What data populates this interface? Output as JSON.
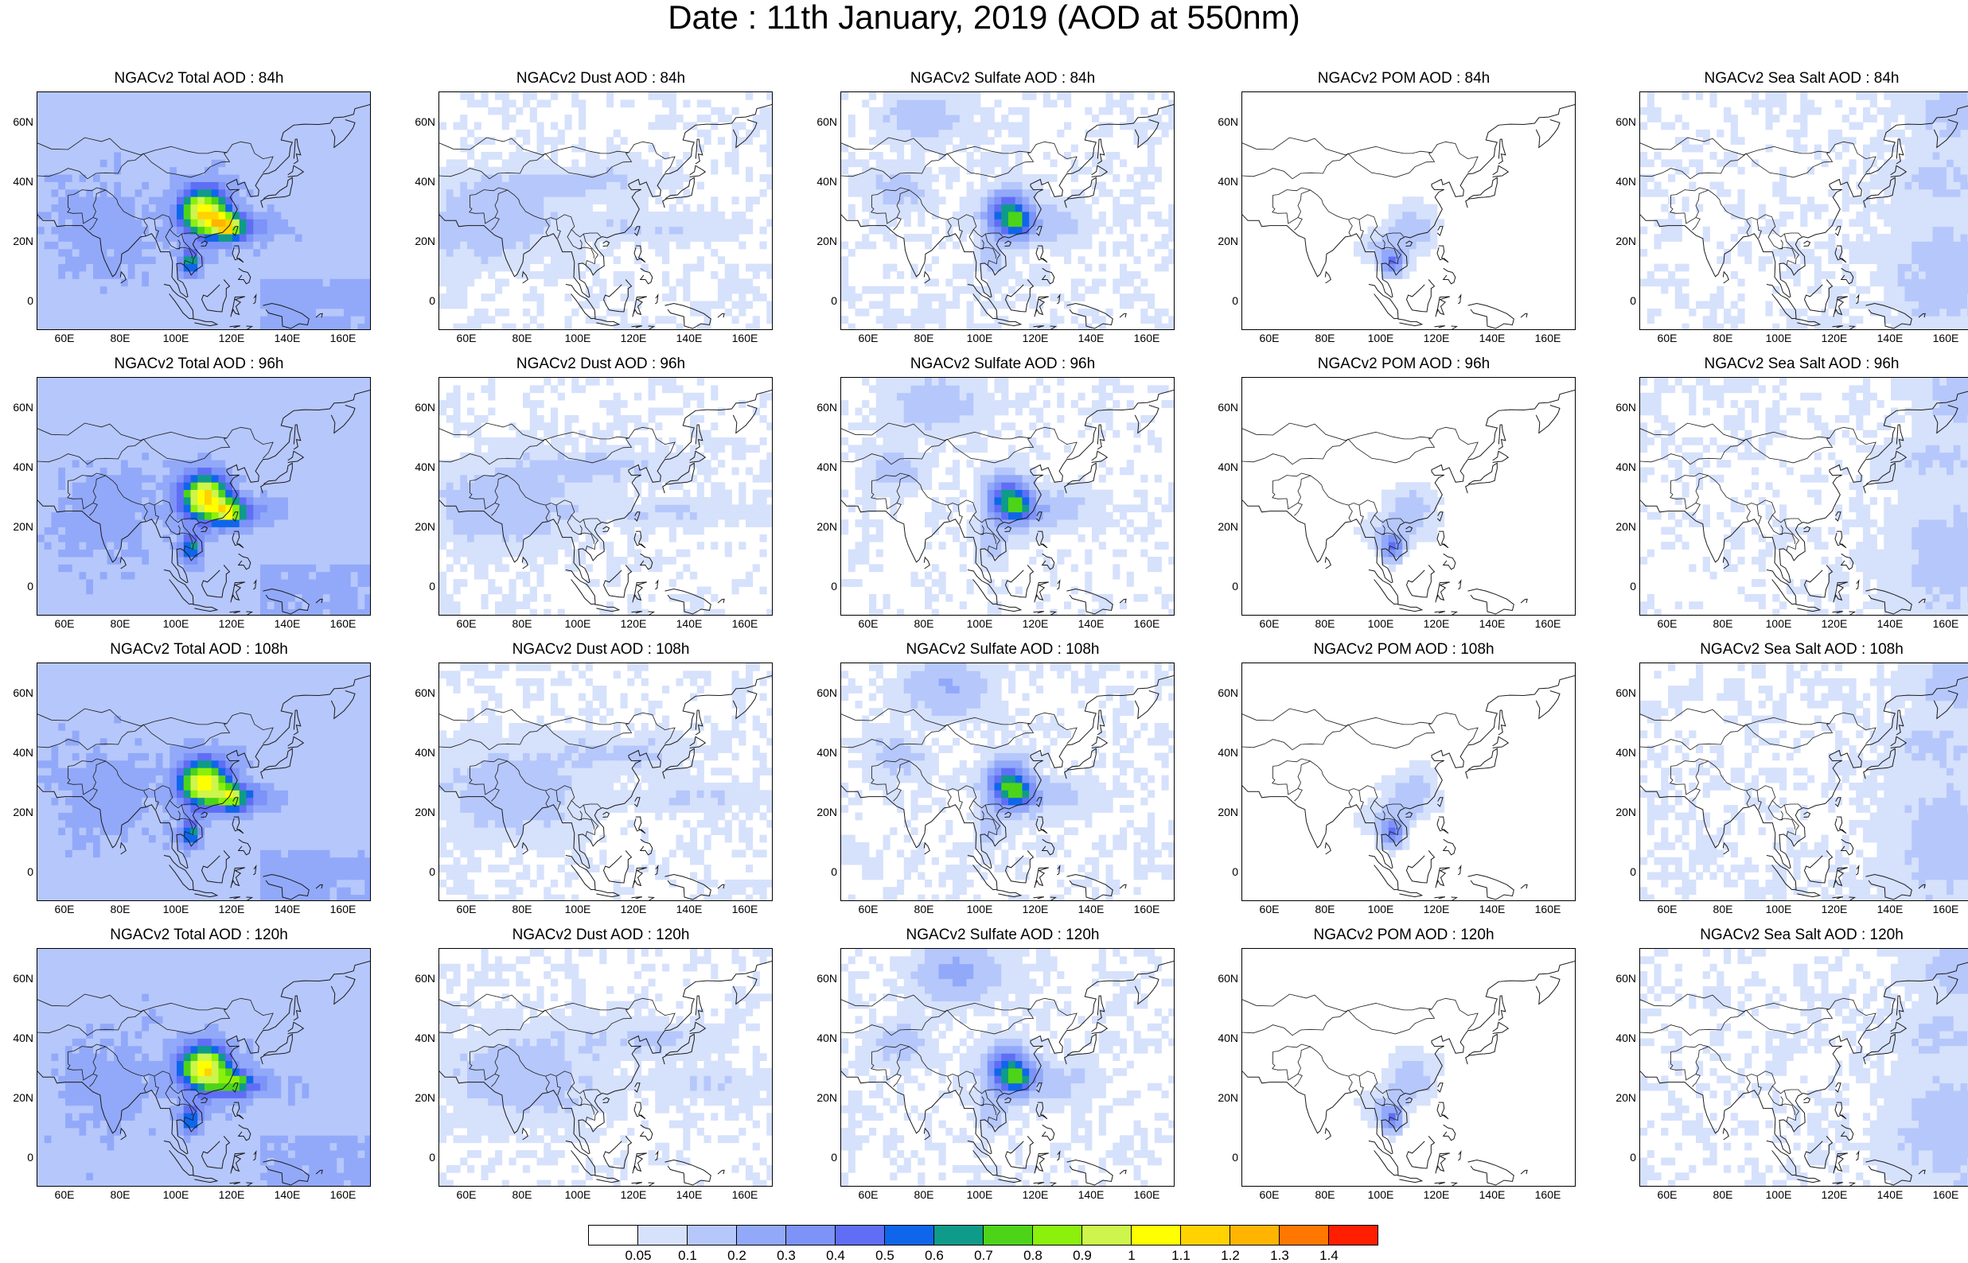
{
  "title": "Date : 11th January, 2019 (AOD at 550nm)",
  "map": {
    "lon_range": [
      50,
      170
    ],
    "lat_range": [
      -10,
      70
    ],
    "lat_ticks": [
      "60N",
      "40N",
      "20N",
      "0"
    ],
    "lon_ticks": [
      "60E",
      "80E",
      "100E",
      "120E",
      "140E",
      "160E"
    ]
  },
  "colorbar": {
    "colors": [
      "#ffffff",
      "#d6e1fc",
      "#b6c7fb",
      "#92a9fa",
      "#7d93f8",
      "#5f6ef5",
      "#0f66ea",
      "#0f9b8a",
      "#4dd419",
      "#8bf00b",
      "#cdf54b",
      "#ffff00",
      "#ffd200",
      "#ffb400",
      "#ff7700",
      "#ff1e00"
    ],
    "labels": [
      "0.05",
      "0.1",
      "0.2",
      "0.3",
      "0.4",
      "0.5",
      "0.6",
      "0.7",
      "0.8",
      "0.9",
      "1",
      "1.1",
      "1.2",
      "1.3",
      "1.4"
    ]
  },
  "panels": [
    {
      "title": "NGACv2 Total AOD : 84h",
      "species": "total",
      "forecast_hour": 84
    },
    {
      "title": "NGACv2 Dust AOD : 84h",
      "species": "dust",
      "forecast_hour": 84
    },
    {
      "title": "NGACv2 Sulfate AOD : 84h",
      "species": "sulfate",
      "forecast_hour": 84
    },
    {
      "title": "NGACv2 POM AOD : 84h",
      "species": "pom",
      "forecast_hour": 84
    },
    {
      "title": "NGACv2 Sea Salt AOD : 84h",
      "species": "seasalt",
      "forecast_hour": 84
    },
    {
      "title": "NGACv2 Total AOD : 96h",
      "species": "total",
      "forecast_hour": 96
    },
    {
      "title": "NGACv2 Dust AOD : 96h",
      "species": "dust",
      "forecast_hour": 96
    },
    {
      "title": "NGACv2 Sulfate AOD : 96h",
      "species": "sulfate",
      "forecast_hour": 96
    },
    {
      "title": "NGACv2 POM AOD : 96h",
      "species": "pom",
      "forecast_hour": 96
    },
    {
      "title": "NGACv2 Sea Salt AOD : 96h",
      "species": "seasalt",
      "forecast_hour": 96
    },
    {
      "title": "NGACv2 Total AOD : 108h",
      "species": "total",
      "forecast_hour": 108
    },
    {
      "title": "NGACv2 Dust AOD : 108h",
      "species": "dust",
      "forecast_hour": 108
    },
    {
      "title": "NGACv2 Sulfate AOD : 108h",
      "species": "sulfate",
      "forecast_hour": 108
    },
    {
      "title": "NGACv2 POM AOD : 108h",
      "species": "pom",
      "forecast_hour": 108
    },
    {
      "title": "NGACv2 Sea Salt AOD : 108h",
      "species": "seasalt",
      "forecast_hour": 108
    },
    {
      "title": "NGACv2 Total AOD : 120h",
      "species": "total",
      "forecast_hour": 120
    },
    {
      "title": "NGACv2 Dust AOD : 120h",
      "species": "dust",
      "forecast_hour": 120
    },
    {
      "title": "NGACv2 Sulfate AOD : 120h",
      "species": "sulfate",
      "forecast_hour": 120
    },
    {
      "title": "NGACv2 POM AOD : 120h",
      "species": "pom",
      "forecast_hour": 120
    },
    {
      "title": "NGACv2 Sea Salt  AOD : 120h",
      "species": "seasalt",
      "forecast_hour": 120
    }
  ]
}
